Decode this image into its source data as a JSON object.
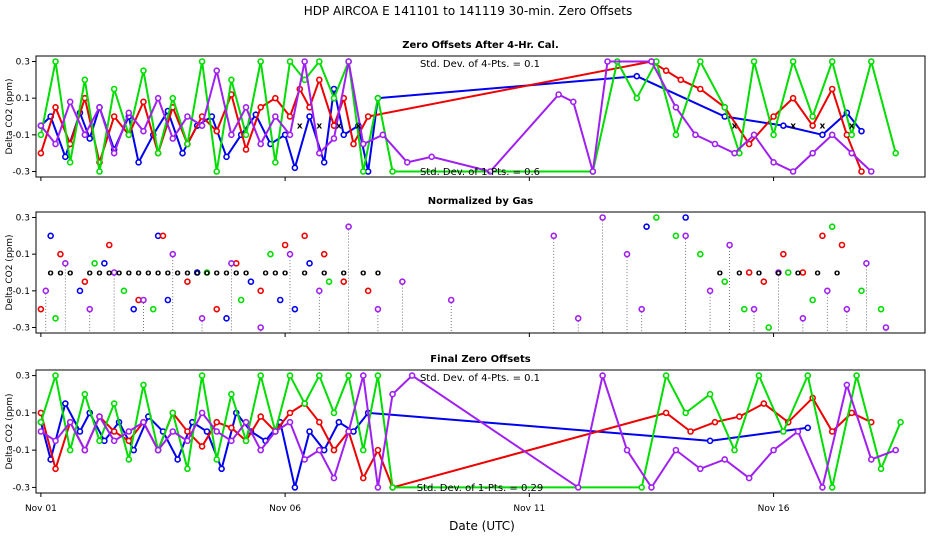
{
  "main_title": "HDP   AIRCOA E   141101 to 141119   30-min. Zero Offsets",
  "x_axis_label": "Date (UTC)",
  "colors": {
    "blue": "#0000ee",
    "red": "#ee0000",
    "green": "#00dd00",
    "purple": "#a020f0",
    "black": "#000000"
  },
  "chart_data": [
    {
      "type": "line",
      "title": "Zero Offsets After 4-Hr. Cal.",
      "ylabel": "Delta CO2 (ppm)",
      "ylim": [
        -0.33,
        0.33
      ],
      "yticks": [
        "-0.3",
        "-0.1",
        "0.1",
        "0.3"
      ],
      "xlim": [
        0.9,
        19.1
      ],
      "xticks": [
        "Nov 01",
        "Nov 06",
        "Nov 11",
        "Nov 16"
      ],
      "annotations": [
        "Std. Dev. of 4-Pts. =  0.1",
        "Std. Dev. of 1-Pts. =  0.6"
      ],
      "series": [
        {
          "color": "blue",
          "x": [
            1.0,
            1.2,
            1.5,
            1.8,
            2.0,
            2.2,
            2.5,
            2.8,
            3.0,
            3.3,
            3.6,
            3.9,
            4.2,
            4.5,
            4.8,
            5.1,
            5.4,
            5.7,
            6.0,
            6.2,
            6.5,
            6.8,
            7.0,
            7.2,
            7.5,
            7.7,
            7.9,
            13.2,
            15.0,
            16.2,
            17.0,
            17.5,
            17.8
          ],
          "y": [
            -0.05,
            0.0,
            -0.22,
            0.02,
            -0.12,
            0.05,
            -0.18,
            0.0,
            -0.25,
            -0.1,
            0.03,
            -0.2,
            -0.05,
            0.0,
            -0.22,
            -0.1,
            0.01,
            -0.15,
            -0.1,
            -0.28,
            0.0,
            -0.25,
            0.15,
            -0.1,
            -0.05,
            -0.3,
            0.1,
            0.22,
            0.0,
            -0.05,
            -0.1,
            0.02,
            -0.08
          ]
        },
        {
          "color": "red",
          "x": [
            1.0,
            1.3,
            1.6,
            1.9,
            2.2,
            2.5,
            2.8,
            3.1,
            3.4,
            3.7,
            4.0,
            4.3,
            4.6,
            4.9,
            5.2,
            5.5,
            5.8,
            6.1,
            6.3,
            6.5,
            6.7,
            7.0,
            7.2,
            7.4,
            7.7,
            13.5,
            13.8,
            14.1,
            14.5,
            15.0,
            15.5,
            16.0,
            16.4,
            16.8,
            17.2,
            17.5,
            17.8
          ],
          "y": [
            -0.2,
            0.05,
            -0.15,
            0.1,
            -0.25,
            0.0,
            -0.1,
            0.08,
            -0.2,
            0.05,
            -0.15,
            0.0,
            -0.08,
            0.12,
            -0.18,
            0.05,
            0.1,
            0.0,
            0.15,
            0.05,
            0.2,
            -0.05,
            0.1,
            -0.15,
            0.0,
            0.3,
            0.25,
            0.2,
            0.15,
            0.05,
            -0.15,
            0.0,
            0.1,
            -0.05,
            0.15,
            -0.1,
            -0.3
          ]
        },
        {
          "color": "green",
          "x": [
            1.0,
            1.3,
            1.6,
            1.9,
            2.2,
            2.5,
            2.8,
            3.1,
            3.4,
            3.7,
            4.0,
            4.3,
            4.6,
            4.9,
            5.2,
            5.5,
            5.8,
            6.1,
            6.4,
            6.7,
            7.0,
            7.3,
            7.6,
            7.9,
            8.2,
            12.3,
            12.8,
            13.2,
            13.6,
            14.0,
            14.5,
            15.0,
            15.3,
            15.6,
            16.0,
            16.4,
            16.8,
            17.2,
            17.6,
            18.0,
            18.5
          ],
          "y": [
            -0.1,
            0.3,
            -0.25,
            0.2,
            -0.3,
            0.15,
            -0.1,
            0.25,
            -0.2,
            0.1,
            -0.15,
            0.3,
            -0.3,
            0.2,
            -0.1,
            0.3,
            -0.25,
            0.3,
            0.2,
            0.3,
            0.1,
            0.3,
            -0.3,
            0.1,
            -0.3,
            -0.3,
            0.3,
            0.1,
            0.3,
            -0.1,
            0.3,
            0.05,
            -0.2,
            0.3,
            -0.1,
            0.3,
            0.0,
            0.3,
            -0.1,
            0.3,
            -0.2
          ]
        },
        {
          "color": "purple",
          "x": [
            1.0,
            1.3,
            1.6,
            1.9,
            2.2,
            2.5,
            2.8,
            3.1,
            3.4,
            3.7,
            4.0,
            4.3,
            4.6,
            4.9,
            5.2,
            5.5,
            5.8,
            6.1,
            6.4,
            6.7,
            7.0,
            7.3,
            7.6,
            8.0,
            8.5,
            9.0,
            10.2,
            11.6,
            11.9,
            12.3,
            12.6,
            13.5,
            14.0,
            14.4,
            14.8,
            15.2,
            15.6,
            16.0,
            16.4,
            16.8,
            17.2,
            17.6,
            18.0
          ],
          "y": [
            -0.05,
            -0.15,
            0.08,
            -0.1,
            0.05,
            -0.2,
            0.02,
            -0.08,
            0.1,
            -0.12,
            0.0,
            -0.05,
            0.25,
            -0.1,
            0.05,
            -0.15,
            0.0,
            -0.1,
            0.3,
            -0.2,
            -0.12,
            0.3,
            -0.15,
            -0.1,
            -0.25,
            -0.22,
            -0.3,
            0.12,
            0.08,
            -0.3,
            0.3,
            0.3,
            0.05,
            -0.1,
            -0.15,
            -0.2,
            -0.1,
            -0.25,
            -0.3,
            -0.2,
            -0.1,
            -0.2,
            -0.3
          ]
        },
        {
          "color": "black",
          "x": [
            6.3,
            6.7,
            7.1,
            7.5,
            15.2,
            16.4,
            17.0,
            17.6
          ],
          "y": [
            -0.05,
            -0.05,
            -0.05,
            -0.05,
            -0.05,
            -0.05,
            -0.05,
            -0.05
          ],
          "markers_only": true
        }
      ]
    },
    {
      "type": "scatter",
      "title": "Normalized by Gas",
      "ylabel": "Delta CO2 (ppm)",
      "ylim": [
        -0.33,
        0.33
      ],
      "yticks": [
        "-0.3",
        "-0.1",
        "0.1",
        "0.3"
      ],
      "xlim": [
        0.9,
        19.1
      ],
      "xticks": [
        "Nov 01",
        "Nov 06",
        "Nov 11",
        "Nov 16"
      ],
      "annotations": [],
      "series": [
        {
          "color": "blue",
          "x": [
            1.2,
            1.8,
            2.3,
            2.9,
            3.4,
            3.6,
            4.2,
            4.8,
            5.3,
            5.9,
            6.2,
            6.5,
            13.4,
            14.2
          ],
          "y": [
            0.2,
            -0.1,
            0.05,
            -0.2,
            0.2,
            -0.15,
            0.0,
            -0.25,
            -0.05,
            -0.15,
            -0.2,
            0.05,
            0.25,
            0.3
          ]
        },
        {
          "color": "red",
          "x": [
            1.0,
            1.4,
            1.9,
            2.4,
            3.0,
            3.5,
            4.0,
            4.6,
            5.0,
            5.5,
            6.0,
            6.4,
            6.8,
            7.2,
            7.7,
            15.5,
            15.8,
            16.2,
            16.6,
            17.0,
            17.4
          ],
          "y": [
            -0.2,
            0.1,
            -0.05,
            0.15,
            -0.15,
            0.2,
            -0.05,
            -0.2,
            0.05,
            -0.1,
            0.15,
            0.2,
            0.1,
            -0.05,
            -0.1,
            0.0,
            -0.05,
            0.1,
            0.0,
            0.2,
            0.15
          ]
        },
        {
          "color": "green",
          "x": [
            1.3,
            2.1,
            2.7,
            3.3,
            4.4,
            5.1,
            5.7,
            6.9,
            13.6,
            14.0,
            14.5,
            15.0,
            15.4,
            15.9,
            16.3,
            16.8,
            17.2,
            17.8,
            18.2
          ],
          "y": [
            -0.25,
            0.05,
            -0.1,
            -0.2,
            0.0,
            -0.15,
            0.1,
            -0.05,
            0.3,
            0.2,
            0.1,
            -0.05,
            -0.2,
            -0.3,
            0.0,
            -0.15,
            0.25,
            -0.1,
            -0.2
          ]
        },
        {
          "color": "purple",
          "x": [
            1.1,
            1.5,
            2.0,
            2.5,
            3.1,
            3.7,
            4.3,
            4.9,
            5.5,
            6.1,
            6.7,
            7.3,
            7.9,
            8.4,
            9.4,
            11.5,
            12.0,
            12.5,
            13.0,
            13.3,
            14.2,
            14.7,
            15.1,
            15.6,
            16.1,
            16.6,
            17.1,
            17.5,
            17.9,
            18.3
          ],
          "y": [
            -0.1,
            0.05,
            -0.2,
            0.0,
            -0.15,
            0.1,
            -0.25,
            0.05,
            -0.3,
            0.1,
            -0.1,
            0.25,
            -0.2,
            -0.05,
            -0.15,
            0.2,
            -0.25,
            0.3,
            0.1,
            -0.2,
            0.2,
            -0.1,
            0.15,
            -0.2,
            0.0,
            -0.25,
            -0.1,
            -0.2,
            0.05,
            -0.3
          ]
        },
        {
          "color": "black",
          "x": [
            1.2,
            1.4,
            1.6,
            2.0,
            2.2,
            2.4,
            2.6,
            2.8,
            3.0,
            3.2,
            3.4,
            3.6,
            3.8,
            4.0,
            4.2,
            4.4,
            4.6,
            4.8,
            5.0,
            5.2,
            5.6,
            5.8,
            6.0,
            6.4,
            6.8,
            7.2,
            7.6,
            7.9,
            14.9,
            15.3,
            15.7,
            16.1,
            16.5,
            16.9,
            17.3
          ],
          "y": [
            0.0,
            0.0,
            0.0,
            0.0,
            0.0,
            0.0,
            0.0,
            0.0,
            0.0,
            0.0,
            0.0,
            0.0,
            0.0,
            0.0,
            0.0,
            0.0,
            0.0,
            0.0,
            0.0,
            0.0,
            0.0,
            0.0,
            0.0,
            0.0,
            0.0,
            0.0,
            0.0,
            0.0,
            0.0,
            0.0,
            0.0,
            0.0,
            0.0,
            0.0,
            0.0
          ],
          "markers_only": true
        }
      ]
    },
    {
      "type": "line",
      "title": "Final Zero Offsets",
      "ylabel": "Delta CO2 (ppm)",
      "ylim": [
        -0.33,
        0.33
      ],
      "yticks": [
        "-0.3",
        "-0.1",
        "0.1",
        "0.3"
      ],
      "xlim": [
        0.9,
        19.1
      ],
      "xticks": [
        "Nov 01",
        "Nov 06",
        "Nov 11",
        "Nov 16"
      ],
      "annotations": [
        "Std. Dev. of 4-Pts. =  0.1",
        "Std. Dev. of 1-Pts. =  0.29"
      ],
      "series": [
        {
          "color": "blue",
          "x": [
            1.0,
            1.2,
            1.5,
            1.8,
            2.0,
            2.3,
            2.6,
            2.9,
            3.2,
            3.5,
            3.8,
            4.1,
            4.4,
            4.7,
            5.0,
            5.3,
            5.6,
            5.9,
            6.2,
            6.5,
            6.8,
            7.1,
            7.4,
            7.7,
            14.7,
            16.7
          ],
          "y": [
            0.05,
            -0.15,
            0.15,
            0.0,
            0.1,
            -0.05,
            0.05,
            -0.1,
            0.08,
            0.0,
            -0.15,
            0.05,
            0.0,
            -0.2,
            0.1,
            0.0,
            -0.05,
            0.05,
            -0.3,
            0.0,
            -0.1,
            0.05,
            0.0,
            0.1,
            -0.05,
            0.02
          ]
        },
        {
          "color": "red",
          "x": [
            1.0,
            1.3,
            1.6,
            1.9,
            2.2,
            2.5,
            2.8,
            3.1,
            3.4,
            3.7,
            4.0,
            4.3,
            4.6,
            4.9,
            5.2,
            5.5,
            5.8,
            6.1,
            6.4,
            6.7,
            7.0,
            7.3,
            7.6,
            7.9,
            8.2,
            13.8,
            14.3,
            14.8,
            15.3,
            15.8,
            16.3,
            16.8,
            17.2,
            17.6,
            18.0
          ],
          "y": [
            0.1,
            -0.2,
            0.05,
            -0.1,
            0.08,
            0.0,
            -0.05,
            0.05,
            -0.1,
            0.1,
            0.0,
            -0.08,
            0.05,
            0.02,
            -0.05,
            0.08,
            0.0,
            0.1,
            0.15,
            0.05,
            -0.1,
            0.0,
            -0.25,
            -0.1,
            -0.3,
            0.1,
            0.0,
            0.05,
            0.08,
            0.15,
            0.05,
            0.18,
            0.0,
            0.1,
            0.05
          ]
        },
        {
          "color": "green",
          "x": [
            1.0,
            1.3,
            1.6,
            1.9,
            2.2,
            2.5,
            2.8,
            3.1,
            3.4,
            3.7,
            4.0,
            4.3,
            4.6,
            4.9,
            5.2,
            5.5,
            5.8,
            6.1,
            6.4,
            6.7,
            7.0,
            7.3,
            7.6,
            7.9,
            8.2,
            13.3,
            13.8,
            14.2,
            14.7,
            15.2,
            15.7,
            16.2,
            16.7,
            17.2,
            17.7,
            18.2,
            18.6
          ],
          "y": [
            0.05,
            0.3,
            -0.1,
            0.2,
            -0.05,
            0.15,
            -0.15,
            0.25,
            -0.1,
            0.1,
            -0.2,
            0.3,
            -0.15,
            0.2,
            -0.05,
            0.3,
            0.0,
            0.3,
            0.15,
            0.3,
            0.1,
            0.3,
            -0.1,
            0.3,
            -0.3,
            -0.3,
            0.3,
            0.1,
            0.2,
            -0.1,
            0.3,
            0.0,
            0.3,
            -0.3,
            0.3,
            -0.2,
            0.05
          ]
        },
        {
          "color": "purple",
          "x": [
            1.0,
            1.3,
            1.6,
            1.9,
            2.2,
            2.5,
            2.8,
            3.1,
            3.4,
            3.7,
            4.0,
            4.3,
            4.6,
            4.9,
            5.2,
            5.5,
            5.8,
            6.1,
            6.4,
            6.7,
            7.0,
            7.3,
            7.6,
            7.9,
            8.2,
            8.6,
            12.0,
            12.5,
            13.0,
            13.5,
            14.0,
            14.5,
            15.0,
            15.5,
            16.0,
            16.5,
            17.0,
            17.5,
            18.0,
            18.5
          ],
          "y": [
            0.0,
            -0.05,
            0.05,
            -0.1,
            0.08,
            -0.05,
            0.0,
            0.05,
            -0.1,
            0.0,
            -0.05,
            0.1,
            0.0,
            -0.05,
            0.05,
            -0.1,
            0.0,
            0.05,
            -0.15,
            -0.1,
            -0.25,
            0.0,
            0.3,
            -0.3,
            0.2,
            0.3,
            -0.3,
            0.3,
            -0.1,
            -0.3,
            -0.1,
            -0.2,
            -0.15,
            -0.25,
            -0.1,
            0.0,
            -0.3,
            0.25,
            -0.15,
            -0.1
          ]
        }
      ]
    }
  ]
}
